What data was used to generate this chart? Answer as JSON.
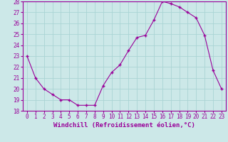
{
  "hours": [
    0,
    1,
    2,
    3,
    4,
    5,
    6,
    7,
    8,
    9,
    10,
    11,
    12,
    13,
    14,
    15,
    16,
    17,
    18,
    19,
    20,
    21,
    22,
    23
  ],
  "values": [
    23.0,
    21.0,
    20.0,
    19.5,
    19.0,
    19.0,
    18.5,
    18.5,
    18.5,
    20.3,
    21.5,
    22.2,
    23.5,
    24.7,
    24.9,
    26.3,
    28.0,
    27.8,
    27.5,
    27.0,
    26.5,
    24.9,
    21.7,
    20.0
  ],
  "line_color": "#990099",
  "marker": "+",
  "marker_size": 3,
  "bg_color": "#cce8e8",
  "grid_color": "#aad4d4",
  "xlabel": "Windchill (Refroidissement éolien,°C)",
  "ylim": [
    18,
    28
  ],
  "yticks": [
    18,
    19,
    20,
    21,
    22,
    23,
    24,
    25,
    26,
    27,
    28
  ],
  "xticks": [
    0,
    1,
    2,
    3,
    4,
    5,
    6,
    7,
    8,
    9,
    10,
    11,
    12,
    13,
    14,
    15,
    16,
    17,
    18,
    19,
    20,
    21,
    22,
    23
  ],
  "tick_fontsize": 5.5,
  "xlabel_fontsize": 6.5
}
